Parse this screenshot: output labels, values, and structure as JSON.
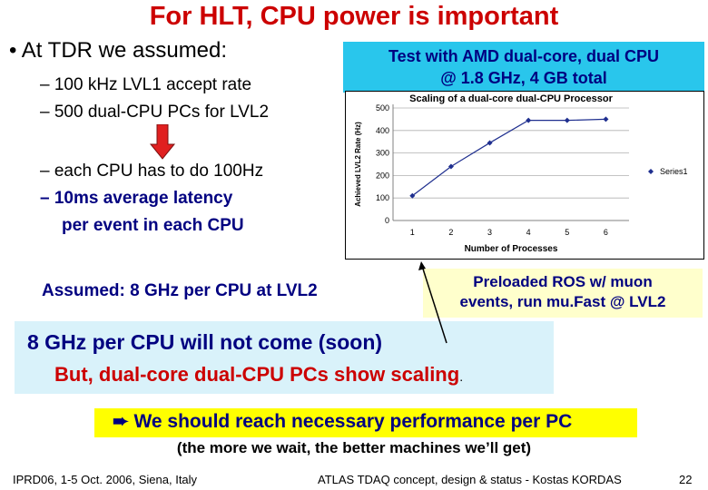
{
  "title": "For HLT, CPU power is important",
  "bullets": {
    "main": "• At TDR we assumed:",
    "sub1": "– 100 kHz LVL1 accept rate",
    "sub2": "– 500 dual-CPU PCs for LVL2",
    "sub3": "– each CPU has to do 100Hz",
    "sub4": "– 10ms average latency",
    "sub4b": "per event in each CPU"
  },
  "test_box": {
    "line1": "Test with AMD dual-core, dual CPU",
    "line2": "@ 1.8 GHz, 4 GB total"
  },
  "assumed": "Assumed: 8 GHz per CPU at LVL2",
  "preloaded": {
    "line1": "Preloaded ROS w/ muon",
    "line2": "events, run mu.Fast @ LVL2"
  },
  "conclusion": {
    "line1": "8 GHz per CPU will not come (soon)",
    "line2": "But, dual-core dual-CPU PCs show scaling",
    "line2_end": "."
  },
  "should_reach": "We should reach necessary performance per PC",
  "arrow_glyph": "➨",
  "parenthetical": "(the more we wait, the better machines we’ll get)",
  "footer": {
    "left": "IPRD06, 1-5 Oct. 2006, Siena, Italy",
    "center": "ATLAS TDAQ concept, design & status - Kostas KORDAS",
    "page": "22"
  },
  "colors": {
    "title": "#cc0000",
    "accent_navy": "#000080",
    "test_box_bg": "#29c6ec",
    "preloaded_bg": "#ffffcc",
    "conclusion_bg": "#d9f2fa",
    "highlight_bg": "#ffff00",
    "down_arrow": "#e02020"
  },
  "chart_data": {
    "type": "scatter",
    "title": "Scaling of a dual-core dual-CPU Processor",
    "xlabel": "Number of Processes",
    "ylabel": "Achieved LVL2 Rate (Hz)",
    "xticks": [
      "1",
      "2",
      "3",
      "4",
      "5",
      "6"
    ],
    "yticks": [
      "0",
      "100",
      "200",
      "300",
      "400",
      "500"
    ],
    "xlim": [
      0.5,
      6.6
    ],
    "ylim": [
      0,
      500
    ],
    "grid": true,
    "legend": "right",
    "series": [
      {
        "name": "Series1",
        "x": [
          1,
          2,
          3,
          4,
          5,
          6
        ],
        "y": [
          110,
          240,
          345,
          445,
          445,
          450
        ]
      }
    ]
  }
}
